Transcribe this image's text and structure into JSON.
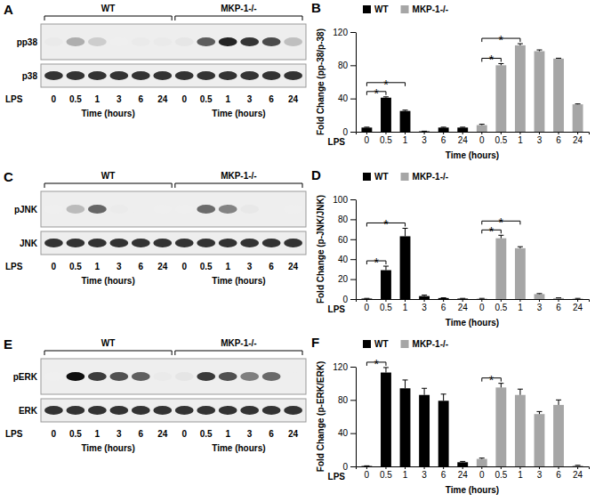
{
  "chart_data": [
    {
      "type": "bar",
      "title": "B",
      "ylabel": "Fold Change (pp-38/p-38)",
      "xlabel": "Time (hours)",
      "row_label": "LPS",
      "categories": [
        "0",
        "0.5",
        "1",
        "3",
        "6",
        "24",
        "0",
        "0.5",
        "1",
        "3",
        "6",
        "24"
      ],
      "series": [
        {
          "name": "WT",
          "color": "#000000",
          "values": [
            5,
            41,
            25,
            0.5,
            5,
            5,
            null,
            null,
            null,
            null,
            null,
            null
          ],
          "errors": [
            0.5,
            1,
            1,
            0.2,
            0.5,
            0.5,
            null,
            null,
            null,
            null,
            null,
            null
          ]
        },
        {
          "name": "MKP-1-/-",
          "color": "#a6a6a6",
          "values": [
            null,
            null,
            null,
            null,
            null,
            null,
            8,
            80,
            104,
            97,
            88,
            33
          ],
          "errors": [
            null,
            null,
            null,
            null,
            null,
            null,
            1,
            2,
            2,
            1.5,
            0.5,
            0.5
          ]
        }
      ],
      "ylim": [
        0,
        120
      ],
      "yticks": [
        0,
        40,
        80,
        120
      ],
      "legend": "top-left",
      "significance": [
        {
          "from": 0,
          "to": 1,
          "label": "*"
        },
        {
          "from": 0,
          "to": 2,
          "label": "*"
        },
        {
          "from": 6,
          "to": 7,
          "label": "*"
        },
        {
          "from": 6,
          "to": 8,
          "label": "*"
        }
      ]
    },
    {
      "type": "bar",
      "title": "D",
      "ylabel": "Fold Change (p-JNK/JNK)",
      "xlabel": "Time (hours)",
      "row_label": "LPS",
      "categories": [
        "0",
        "0.5",
        "1",
        "3",
        "6",
        "24",
        "0",
        "0.5",
        "1",
        "3",
        "6",
        "24"
      ],
      "series": [
        {
          "name": "WT",
          "color": "#000000",
          "values": [
            0.5,
            29,
            63,
            3,
            1,
            0.5,
            null,
            null,
            null,
            null,
            null,
            null
          ],
          "errors": [
            0.2,
            4,
            8,
            1,
            0.3,
            0.2,
            null,
            null,
            null,
            null,
            null,
            null
          ]
        },
        {
          "name": "MKP-1-/-",
          "color": "#a6a6a6",
          "values": [
            null,
            null,
            null,
            null,
            null,
            null,
            0.5,
            61,
            51,
            5,
            1,
            0.5
          ],
          "errors": [
            null,
            null,
            null,
            null,
            null,
            null,
            0.2,
            3,
            1.5,
            0.5,
            0.2,
            0.2
          ]
        }
      ],
      "ylim": [
        0,
        100
      ],
      "yticks": [
        0,
        20,
        40,
        60,
        80,
        100
      ],
      "legend": "top-left",
      "significance": [
        {
          "from": 0,
          "to": 1,
          "label": "*"
        },
        {
          "from": 0,
          "to": 2,
          "label": "*"
        },
        {
          "from": 6,
          "to": 7,
          "label": "*"
        },
        {
          "from": 6,
          "to": 8,
          "label": "*"
        }
      ]
    },
    {
      "type": "bar",
      "title": "F",
      "ylabel": "Fold Change (p-ERK/ERK)",
      "xlabel": "Time (hours)",
      "row_label": "LPS",
      "categories": [
        "0",
        "0.5",
        "1",
        "3",
        "6",
        "24",
        "0",
        "0.5",
        "1",
        "3",
        "6",
        "24"
      ],
      "series": [
        {
          "name": "WT",
          "color": "#000000",
          "values": [
            0.5,
            113,
            94,
            86,
            79,
            5,
            null,
            null,
            null,
            null,
            null,
            null
          ],
          "errors": [
            0.2,
            6,
            10,
            8,
            8,
            1,
            null,
            null,
            null,
            null,
            null,
            null
          ]
        },
        {
          "name": "MKP-1-/-",
          "color": "#a6a6a6",
          "values": [
            null,
            null,
            null,
            null,
            null,
            null,
            9,
            95,
            86,
            63,
            74,
            1
          ],
          "errors": [
            null,
            null,
            null,
            null,
            null,
            null,
            1,
            5,
            7,
            3,
            6,
            0.3
          ]
        }
      ],
      "ylim": [
        0,
        120
      ],
      "yticks": [
        0,
        40,
        80,
        120
      ],
      "legend": "top-left",
      "significance": [
        {
          "from": 0,
          "to": 1,
          "label": "*"
        },
        {
          "from": 6,
          "to": 7,
          "label": "*"
        }
      ]
    }
  ],
  "blots": [
    {
      "title": "A",
      "groups": [
        "WT",
        "MKP-1-/-"
      ],
      "rows": [
        "pp38",
        "p38"
      ],
      "row_label": "LPS",
      "lanes": [
        "0",
        "0.5",
        "1",
        "3",
        "6",
        "24"
      ],
      "xlabel": "Time (hours)"
    },
    {
      "title": "C",
      "groups": [
        "WT",
        "MKP-1-/-"
      ],
      "rows": [
        "pJNK",
        "JNK"
      ],
      "row_label": "LPS",
      "lanes": [
        "0",
        "0.5",
        "1",
        "3",
        "6",
        "24"
      ],
      "xlabel": "Time (hours)"
    },
    {
      "title": "E",
      "groups": [
        "WT",
        "MKP-1-/-"
      ],
      "rows": [
        "pERK",
        "ERK"
      ],
      "row_label": "LPS",
      "lanes": [
        "0",
        "0.5",
        "1",
        "3",
        "6",
        "24"
      ],
      "xlabel": "Time (hours)"
    }
  ]
}
